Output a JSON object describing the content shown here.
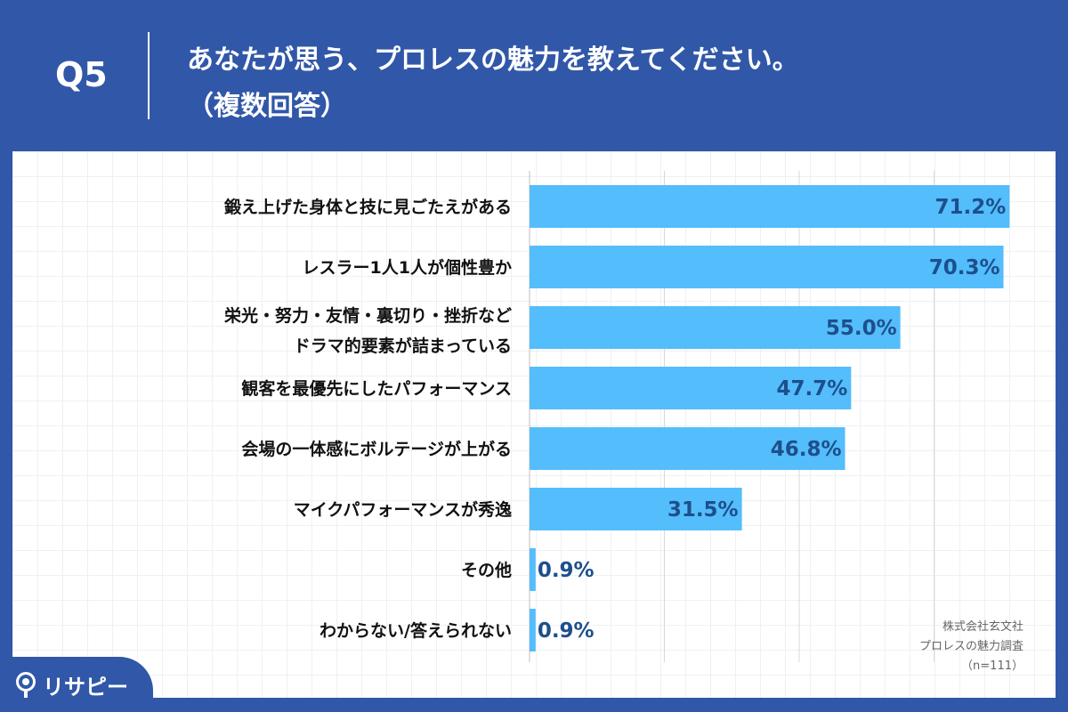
{
  "header": {
    "q_label": "Q5",
    "title_line1": "あなたが思う、プロレスの魅力を教えてください。",
    "title_line2": "（複数回答）"
  },
  "source": {
    "line1": "株式会社玄文社",
    "line2": "プロレスの魅力調査",
    "line3": "（n=111）"
  },
  "logo": {
    "text": "リサピー",
    "icon": "pin-icon"
  },
  "colors": {
    "header_bg": "#3157a8",
    "bar": "#54bdfb",
    "value_text": "#1d4f8c",
    "grid": "#d9d9d9"
  },
  "chart_data": {
    "type": "bar",
    "orientation": "horizontal",
    "categories": [
      [
        "鍛え上げた身体と技に見ごたえがある"
      ],
      [
        "レスラー1人1人が個性豊か"
      ],
      [
        "栄光・努力・友情・裏切り・挫折など",
        "ドラマ的要素が詰まっている"
      ],
      [
        "観客を最優先にしたパフォーマンス"
      ],
      [
        "会場の一体感にボルテージが上がる"
      ],
      [
        "マイクパフォーマンスが秀逸"
      ],
      [
        "その他"
      ],
      [
        "わからない/答えられない"
      ]
    ],
    "values": [
      71.2,
      70.3,
      55.0,
      47.7,
      46.8,
      31.5,
      0.9,
      0.9
    ],
    "value_labels": [
      "71.2%",
      "70.3%",
      "55.0%",
      "47.7%",
      "46.8%",
      "31.5%",
      "0.9%",
      "0.9%"
    ],
    "xlim": [
      0,
      80
    ],
    "grid": true
  }
}
